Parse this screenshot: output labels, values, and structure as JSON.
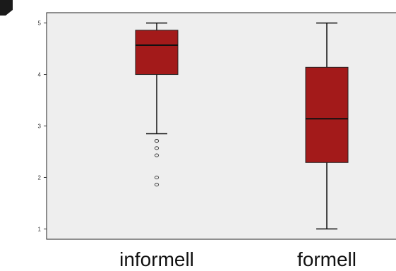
{
  "chart_data": {
    "type": "boxplot",
    "categories": [
      "informell",
      "formell"
    ],
    "ylim": [
      0.8,
      5.2
    ],
    "y_ticks": [
      "1",
      "2",
      "3",
      "4",
      "5"
    ],
    "grid": false,
    "plot_background": "#eeeeee",
    "box_color": "#a31a1a",
    "boxes": [
      {
        "category": "informell",
        "min": 2.85,
        "q1": 4.0,
        "median": 4.57,
        "q3": 4.86,
        "max": 5.0,
        "outliers": [
          2.71,
          2.71,
          2.57,
          2.43,
          2.0,
          1.86
        ]
      },
      {
        "category": "formell",
        "min": 1.0,
        "q1": 2.29,
        "median": 3.14,
        "q3": 4.14,
        "max": 5.0,
        "outliers": []
      }
    ]
  }
}
